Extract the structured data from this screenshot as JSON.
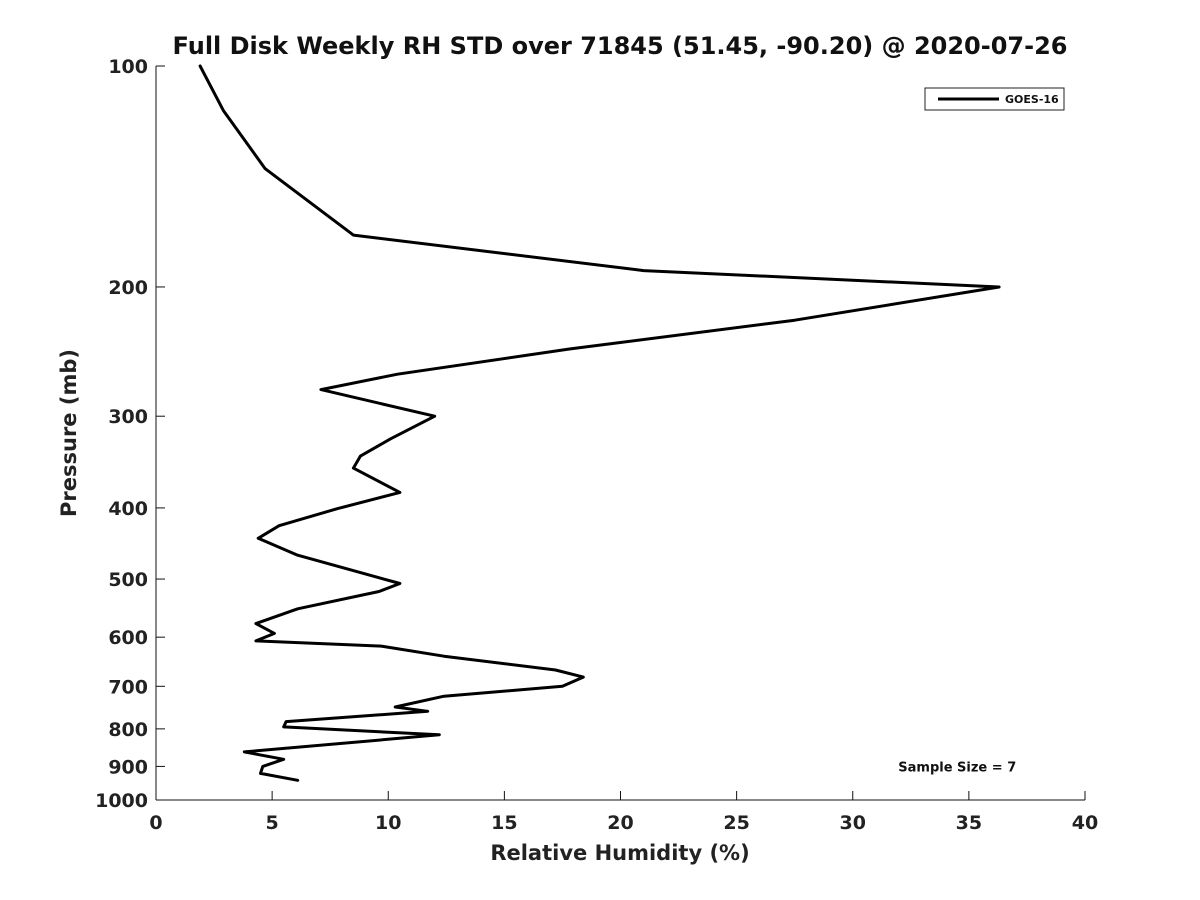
{
  "chart_data": {
    "type": "line",
    "title": "Full Disk Weekly RH STD over 71845 (51.45, -90.20) @ 2020-07-26",
    "xlabel": "Relative Humidity (%)",
    "ylabel": "Pressure (mb)",
    "xlim": [
      0,
      40
    ],
    "ylim": [
      1000,
      100
    ],
    "y_scale": "log",
    "y_reversed": true,
    "x_ticks": [
      0,
      5,
      10,
      15,
      20,
      25,
      30,
      35,
      40
    ],
    "x_tick_labels": [
      "0",
      "5",
      "10",
      "15",
      "20",
      "25",
      "30",
      "35",
      "40"
    ],
    "y_ticks": [
      100,
      200,
      300,
      400,
      500,
      600,
      700,
      800,
      900,
      1000
    ],
    "y_tick_labels": [
      "100",
      "200",
      "300",
      "400",
      "500",
      "600",
      "700",
      "800",
      "900",
      "1000"
    ],
    "grid": false,
    "legend_position": "top-right",
    "series": [
      {
        "name": "GOES-16",
        "color": "#000000",
        "x": [
          1.9,
          2.9,
          4.7,
          8.5,
          21.0,
          36.3,
          27.5,
          17.8,
          10.4,
          7.1,
          12.0,
          10.1,
          8.8,
          8.5,
          10.5,
          7.8,
          5.3,
          4.4,
          6.1,
          8.8,
          10.5,
          9.6,
          6.1,
          4.3,
          5.1,
          4.3,
          9.7,
          12.4,
          17.2,
          18.4,
          17.5,
          12.4,
          10.3,
          11.7,
          5.6,
          5.5,
          12.2,
          3.8,
          5.5,
          4.6,
          4.5,
          6.1
        ],
        "y": [
          100,
          115,
          138,
          170,
          190,
          200,
          222,
          243,
          263,
          276,
          300,
          322,
          340,
          353,
          381,
          401,
          423,
          440,
          464,
          490,
          507,
          520,
          549,
          575,
          593,
          607,
          617,
          637,
          665,
          680,
          700,
          722,
          747,
          757,
          782,
          795,
          815,
          860,
          880,
          900,
          920,
          940
        ]
      }
    ],
    "annotations": [
      {
        "text": "Sample Size = 7",
        "x": 34.5,
        "y": 900
      }
    ]
  }
}
